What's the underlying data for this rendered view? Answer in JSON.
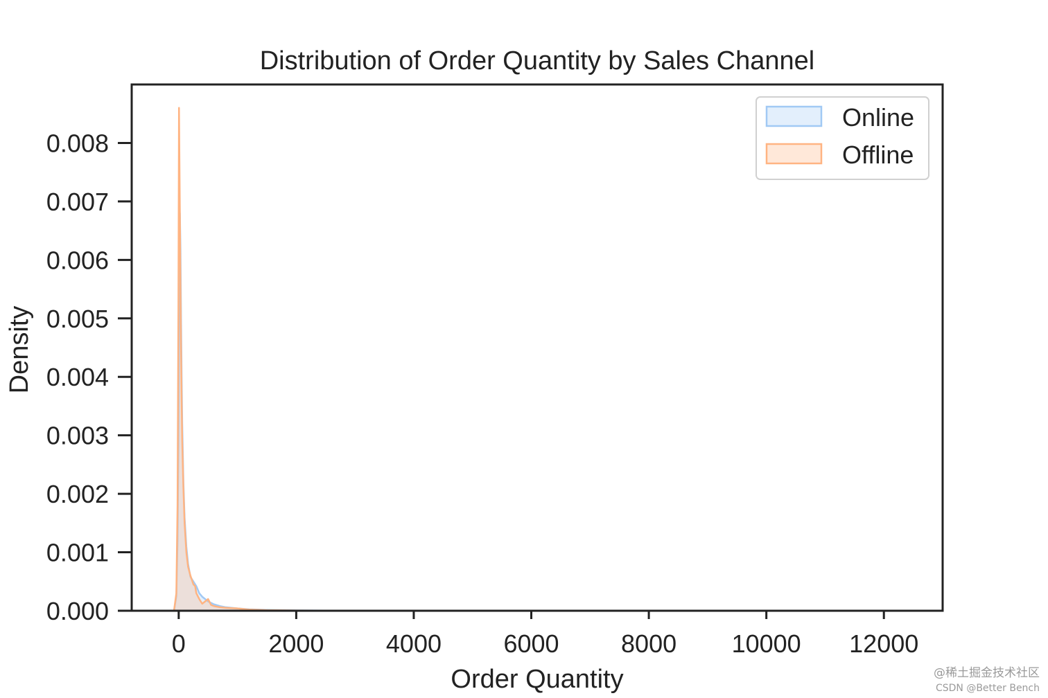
{
  "chart_data": {
    "type": "area",
    "title": "Distribution of Order Quantity by Sales Channel",
    "xlabel": "Order Quantity",
    "ylabel": "Density",
    "xlim": [
      -800,
      13000
    ],
    "ylim": [
      0,
      0.009
    ],
    "xticks": [
      0,
      2000,
      4000,
      6000,
      8000,
      10000,
      12000
    ],
    "xtick_labels": [
      "0",
      "2000",
      "4000",
      "6000",
      "8000",
      "10000",
      "12000"
    ],
    "yticks": [
      0.0,
      0.001,
      0.002,
      0.003,
      0.004,
      0.005,
      0.006,
      0.007,
      0.008
    ],
    "ytick_labels": [
      "0.000",
      "0.001",
      "0.002",
      "0.003",
      "0.004",
      "0.005",
      "0.006",
      "0.007",
      "0.008"
    ],
    "grid": false,
    "legend_position": "top-right",
    "series": [
      {
        "name": "Online",
        "color": "#a1c9f4",
        "x": [
          -80,
          -40,
          -20,
          -5,
          10,
          20,
          30,
          40,
          50,
          60,
          80,
          100,
          130,
          160,
          200,
          250,
          300,
          350,
          400,
          450,
          500,
          600,
          700,
          800,
          1000,
          1200,
          1500,
          2000,
          3000
        ],
        "y": [
          0,
          0.00025,
          0.0012,
          0.0028,
          0.0055,
          0.0068,
          0.0062,
          0.005,
          0.004,
          0.0032,
          0.0022,
          0.0016,
          0.0011,
          0.0008,
          0.00058,
          0.0005,
          0.00042,
          0.0003,
          0.00024,
          0.0002,
          0.00016,
          0.00011,
          8e-05,
          6e-05,
          4e-05,
          2.5e-05,
          1.5e-05,
          6e-06,
          0
        ]
      },
      {
        "name": "Offline",
        "color": "#ffb482",
        "x": [
          -80,
          -40,
          -20,
          -5,
          5,
          10,
          20,
          30,
          40,
          50,
          60,
          80,
          100,
          130,
          160,
          200,
          250,
          280,
          300,
          350,
          400,
          450,
          500,
          550,
          600,
          700,
          800,
          1000,
          1200,
          1500,
          2000,
          3000
        ],
        "y": [
          0,
          0.0003,
          0.0018,
          0.0052,
          0.0086,
          0.008,
          0.0068,
          0.0056,
          0.0045,
          0.0036,
          0.0029,
          0.0021,
          0.0015,
          0.001,
          0.00075,
          0.0006,
          0.00045,
          0.00042,
          0.0003,
          0.0002,
          0.00012,
          0.00016,
          0.0002,
          0.0001,
          8e-05,
          6e-05,
          5e-05,
          4e-05,
          2e-05,
          1e-05,
          5e-06,
          0
        ]
      }
    ]
  },
  "watermark": {
    "line1": "@稀土掘金技术社区",
    "line2": "CSDN @Better Bench"
  }
}
